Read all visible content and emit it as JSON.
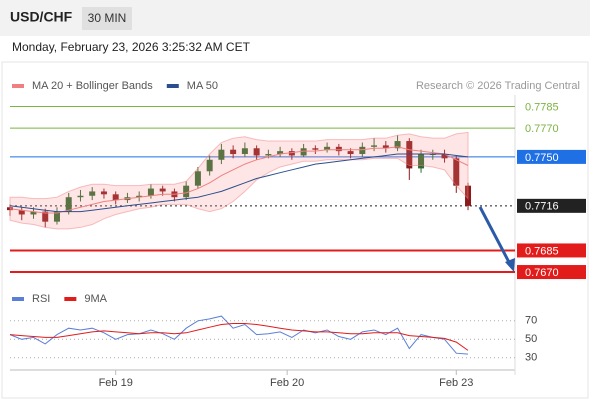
{
  "header": {
    "symbol": "USD/CHF",
    "timeframe": "30 MIN",
    "datetime": "Monday, February 23, 2026 3:25:32 AM CET"
  },
  "chart_data": {
    "type": "candlestick",
    "legend": [
      {
        "name": "MA 20 + Bollinger Bands",
        "color": "#f08080"
      },
      {
        "name": "MA 50",
        "color": "#2b4f8e"
      }
    ],
    "credit": "Research © 2026 Trading Central",
    "x": [
      0,
      1,
      2,
      3,
      4,
      5,
      6,
      7,
      8,
      9,
      10,
      11,
      12,
      13,
      14,
      15,
      16,
      17,
      18,
      19,
      20,
      21,
      22,
      23,
      24,
      25,
      26,
      27,
      28,
      29,
      30,
      31,
      32,
      33,
      34,
      35,
      36,
      37,
      38,
      39
    ],
    "xlim": [
      0,
      43
    ],
    "xticks": [
      {
        "value": 9,
        "label": "Feb 19"
      },
      {
        "value": 23.6,
        "label": "Feb 20"
      },
      {
        "value": 38,
        "label": "Feb 23"
      }
    ],
    "ylim": [
      0.7661,
      0.7793
    ],
    "up_color": "#2e6b2e",
    "down_color": "#8b1a1a",
    "candles": [
      [
        0.7715,
        0.7717,
        0.7709,
        0.7713
      ],
      [
        0.7713,
        0.7715,
        0.7706,
        0.771
      ],
      [
        0.771,
        0.7715,
        0.7707,
        0.7712
      ],
      [
        0.7712,
        0.7714,
        0.7701,
        0.7705
      ],
      [
        0.7705,
        0.7715,
        0.7703,
        0.7712
      ],
      [
        0.7712,
        0.7725,
        0.771,
        0.7722
      ],
      [
        0.7722,
        0.7727,
        0.7719,
        0.7723
      ],
      [
        0.7723,
        0.7729,
        0.772,
        0.7726
      ],
      [
        0.7726,
        0.7728,
        0.7721,
        0.7724
      ],
      [
        0.7724,
        0.7726,
        0.7717,
        0.772
      ],
      [
        0.772,
        0.7725,
        0.7718,
        0.7722
      ],
      [
        0.7722,
        0.7726,
        0.7719,
        0.7723
      ],
      [
        0.7723,
        0.7731,
        0.7721,
        0.7728
      ],
      [
        0.7728,
        0.773,
        0.7723,
        0.7726
      ],
      [
        0.7726,
        0.7728,
        0.7719,
        0.7722
      ],
      [
        0.7722,
        0.7733,
        0.772,
        0.773
      ],
      [
        0.773,
        0.7743,
        0.7728,
        0.774
      ],
      [
        0.774,
        0.7751,
        0.7737,
        0.7748
      ],
      [
        0.7748,
        0.7759,
        0.7745,
        0.7755
      ],
      [
        0.7755,
        0.7758,
        0.7749,
        0.7752
      ],
      [
        0.7752,
        0.776,
        0.775,
        0.7756
      ],
      [
        0.7756,
        0.7758,
        0.7748,
        0.7751
      ],
      [
        0.7751,
        0.7755,
        0.7749,
        0.7752
      ],
      [
        0.7752,
        0.7757,
        0.775,
        0.7754
      ],
      [
        0.7754,
        0.7756,
        0.7748,
        0.7751
      ],
      [
        0.7751,
        0.7759,
        0.775,
        0.7756
      ],
      [
        0.7756,
        0.7758,
        0.7752,
        0.7755
      ],
      [
        0.7755,
        0.776,
        0.7753,
        0.7757
      ],
      [
        0.7757,
        0.7759,
        0.7751,
        0.7754
      ],
      [
        0.7754,
        0.7756,
        0.7749,
        0.7752
      ],
      [
        0.7752,
        0.776,
        0.775,
        0.7757
      ],
      [
        0.7757,
        0.7763,
        0.7754,
        0.7758
      ],
      [
        0.7758,
        0.7761,
        0.7753,
        0.7756
      ],
      [
        0.7756,
        0.7765,
        0.7754,
        0.7761
      ],
      [
        0.7761,
        0.7763,
        0.7734,
        0.7742
      ],
      [
        0.7742,
        0.7755,
        0.7739,
        0.7752
      ],
      [
        0.7752,
        0.7755,
        0.7748,
        0.7752
      ],
      [
        0.7752,
        0.7755,
        0.7746,
        0.7749
      ],
      [
        0.7749,
        0.7751,
        0.7725,
        0.773
      ],
      [
        0.773,
        0.7732,
        0.7713,
        0.7716
      ]
    ],
    "ma20": [
      0.7714,
      0.7713,
      0.7712,
      0.7711,
      0.7711,
      0.7713,
      0.7715,
      0.7717,
      0.7719,
      0.772,
      0.7721,
      0.7722,
      0.7723,
      0.7724,
      0.7724,
      0.7725,
      0.7728,
      0.7732,
      0.7737,
      0.7741,
      0.7745,
      0.7748,
      0.775,
      0.7752,
      0.7753,
      0.7754,
      0.7754,
      0.7755,
      0.7755,
      0.7755,
      0.7755,
      0.7756,
      0.7756,
      0.7757,
      0.7755,
      0.7754,
      0.7753,
      0.7752,
      0.7748,
      0.7744
    ],
    "bollinger_upper": [
      0.7722,
      0.7722,
      0.7721,
      0.7721,
      0.7722,
      0.7726,
      0.7729,
      0.7731,
      0.7731,
      0.773,
      0.773,
      0.773,
      0.7731,
      0.7731,
      0.7731,
      0.7733,
      0.7742,
      0.7752,
      0.776,
      0.7763,
      0.7764,
      0.7762,
      0.7761,
      0.7761,
      0.7761,
      0.7761,
      0.7761,
      0.7762,
      0.7762,
      0.7762,
      0.7762,
      0.7763,
      0.7763,
      0.7765,
      0.7766,
      0.7764,
      0.7763,
      0.7763,
      0.7766,
      0.7767
    ],
    "bollinger_lower": [
      0.7706,
      0.7704,
      0.7703,
      0.7701,
      0.77,
      0.77,
      0.7701,
      0.7703,
      0.7707,
      0.771,
      0.7712,
      0.7714,
      0.7715,
      0.7717,
      0.7717,
      0.7717,
      0.7714,
      0.7712,
      0.7714,
      0.7719,
      0.7726,
      0.7734,
      0.7739,
      0.7743,
      0.7745,
      0.7747,
      0.7747,
      0.7748,
      0.7748,
      0.7748,
      0.7748,
      0.7749,
      0.7749,
      0.7749,
      0.7744,
      0.7744,
      0.7743,
      0.7741,
      0.773,
      0.7721
    ],
    "ma50": [
      0.7716,
      0.7715,
      0.7714,
      0.7713,
      0.7712,
      0.7712,
      0.7712,
      0.7713,
      0.7714,
      0.7715,
      0.7716,
      0.7717,
      0.7718,
      0.7719,
      0.772,
      0.7721,
      0.7722,
      0.7724,
      0.7726,
      0.7729,
      0.7732,
      0.7735,
      0.7737,
      0.7739,
      0.7741,
      0.7743,
      0.7745,
      0.7746,
      0.7747,
      0.7748,
      0.7749,
      0.775,
      0.7751,
      0.7752,
      0.7752,
      0.7752,
      0.7752,
      0.7752,
      0.7751,
      0.775
    ],
    "levels": [
      {
        "value": 0.7785,
        "label": "0.7785",
        "color": "#7cb342",
        "style": "text"
      },
      {
        "value": 0.777,
        "label": "0.7770",
        "color": "#7cb342",
        "style": "text"
      },
      {
        "value": 0.775,
        "label": "0.7750",
        "color": "#1f6fe5",
        "style": "box"
      },
      {
        "value": 0.7716,
        "label": "0.7716",
        "color": "#222222",
        "style": "dotted"
      },
      {
        "value": 0.7685,
        "label": "0.7685",
        "color": "#e21b1b",
        "style": "box"
      },
      {
        "value": 0.767,
        "label": "0.7670",
        "color": "#e21b1b",
        "style": "box"
      }
    ],
    "rsi": {
      "ylim": [
        19,
        87
      ],
      "yticks": [
        70,
        50,
        30
      ],
      "series": [
        {
          "name": "RSI",
          "color": "#5b7fd6",
          "values": [
            55,
            50,
            52,
            45,
            55,
            62,
            60,
            62,
            57,
            50,
            55,
            56,
            60,
            56,
            50,
            62,
            70,
            72,
            75,
            62,
            66,
            55,
            56,
            58,
            52,
            60,
            57,
            60,
            53,
            50,
            58,
            60,
            55,
            62,
            40,
            55,
            52,
            50,
            35,
            34
          ]
        },
        {
          "name": "9MA",
          "color": "#e21b1b",
          "values": [
            55,
            54,
            53,
            52,
            52,
            54,
            56,
            58,
            59,
            58,
            57,
            56,
            57,
            57,
            56,
            57,
            60,
            63,
            66,
            67,
            67,
            66,
            64,
            62,
            60,
            59,
            58,
            58,
            57,
            56,
            56,
            57,
            57,
            57,
            54,
            53,
            52,
            51,
            47,
            38
          ]
        }
      ]
    }
  }
}
